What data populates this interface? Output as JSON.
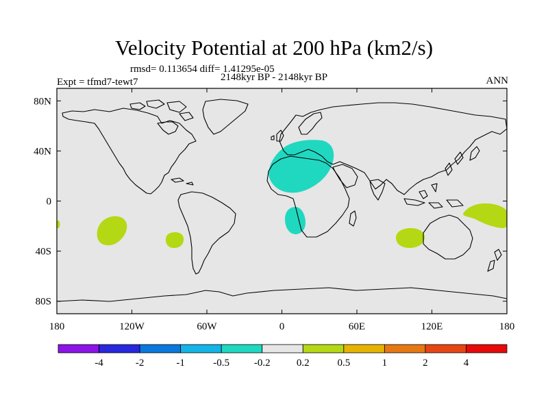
{
  "title": "Velocity Potential at 200 hPa (km2/s)",
  "stats_line": "rmsd= 0.113654 diff= 1.41295e-05",
  "period": "2148kyr BP - 2148kyr BP",
  "experiment": "Expt = tfmd7-tewt7",
  "season": "ANN",
  "map": {
    "background_color": "#e6e6e6",
    "lat_ticks": [
      "80N",
      "40N",
      "0",
      "40S",
      "80S"
    ],
    "lat_values": [
      80,
      40,
      0,
      -40,
      -80
    ],
    "lon_ticks": [
      "180",
      "120W",
      "60W",
      "0",
      "60E",
      "120E",
      "180"
    ],
    "lon_values": [
      -180,
      -120,
      -60,
      0,
      60,
      120,
      180
    ]
  },
  "anomaly_regions": [
    {
      "name": "europe-africa-negative",
      "level": "-0.5 to -0.2",
      "color": "#20d8c0"
    },
    {
      "name": "south-atlantic-negative",
      "level": "-0.5 to -0.2",
      "color": "#20d8c0"
    },
    {
      "name": "east-pacific-positive",
      "level": "0.2 to 0.5",
      "color": "#b4d814"
    },
    {
      "name": "southeast-pacific-positive",
      "level": "0.2 to 0.5",
      "color": "#b4d814"
    },
    {
      "name": "indian-ocean-positive",
      "level": "0.2 to 0.5",
      "color": "#b4d814"
    },
    {
      "name": "west-pacific-positive",
      "level": "0.2 to 0.5",
      "color": "#b4d814"
    }
  ],
  "colorbar": {
    "labels": [
      "-4",
      "-2",
      "-1",
      "-0.5",
      "-0.2",
      "0.2",
      "0.5",
      "1",
      "2",
      "4"
    ],
    "colors": [
      "#8c14e6",
      "#2828dc",
      "#0a78dc",
      "#14b4e6",
      "#20d8c0",
      "#e6e6e6",
      "#b4d814",
      "#e6b400",
      "#e67814",
      "#e64614",
      "#e60a0a"
    ]
  }
}
